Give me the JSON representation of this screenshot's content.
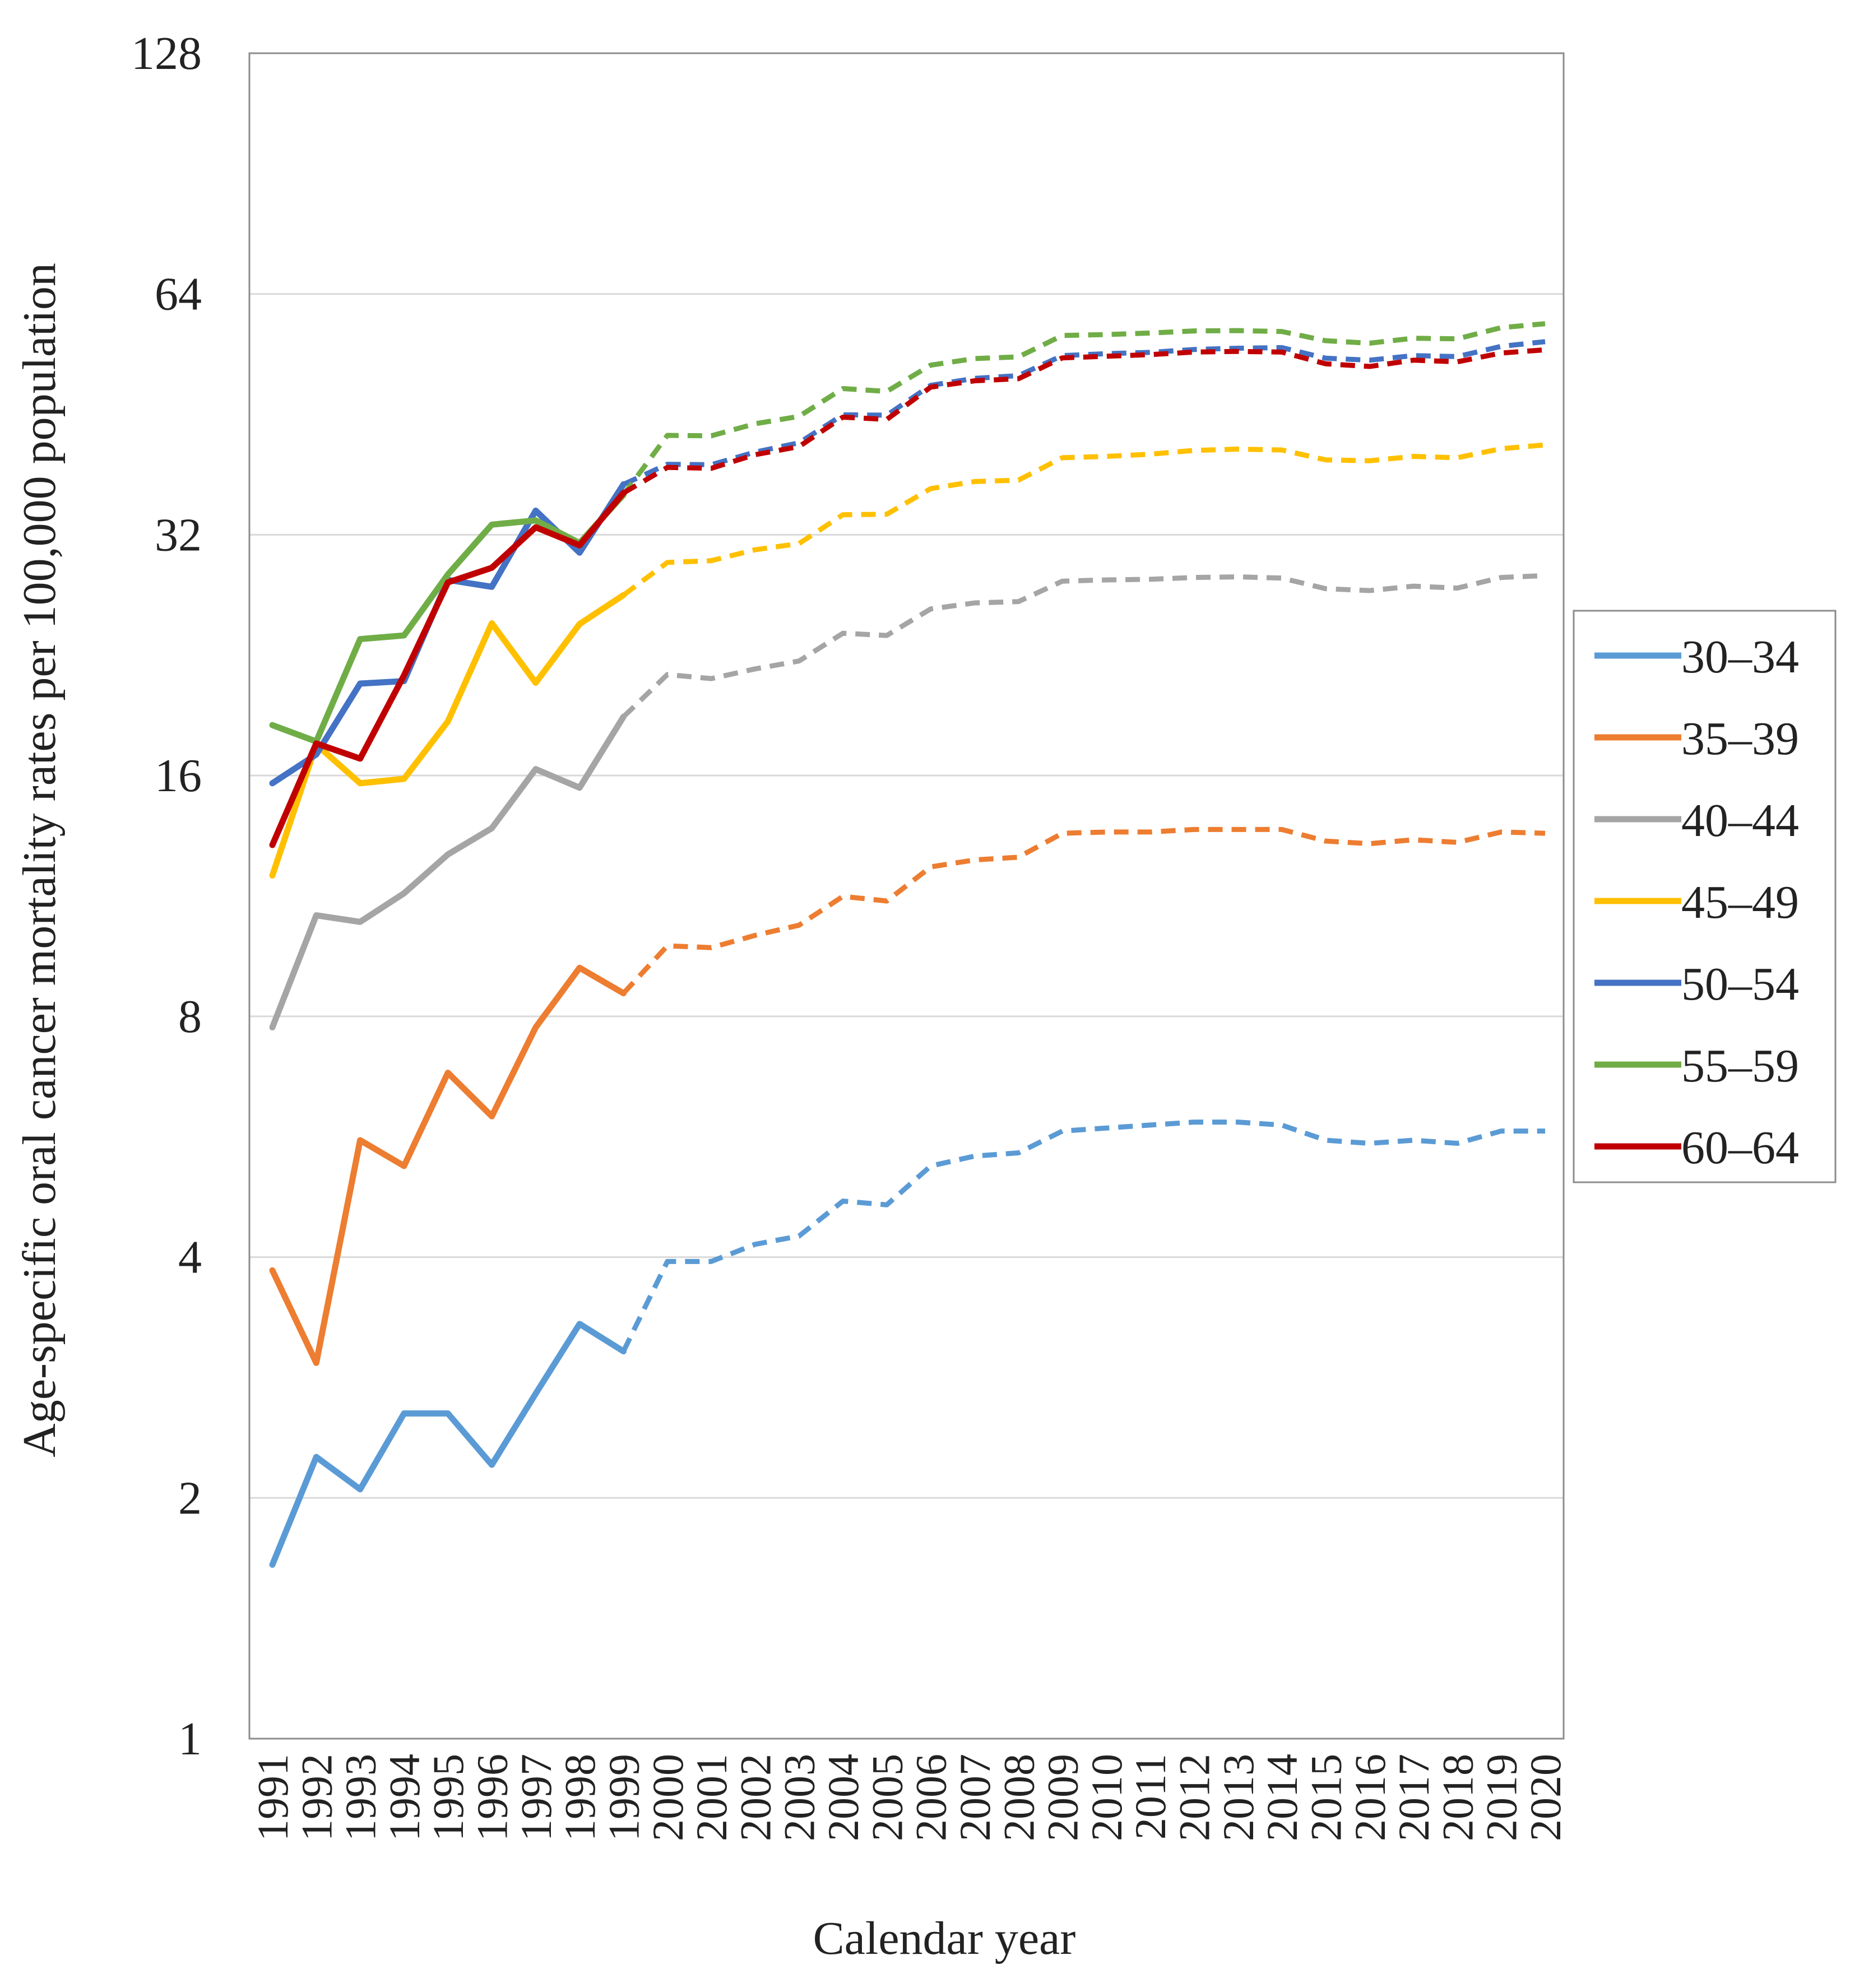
{
  "chart_data": {
    "type": "line",
    "title": "",
    "xlabel": "Calendar year",
    "ylabel": "Age-specific oral cancer mortality rates per 100,000 population",
    "yscale": "log2",
    "ylim": [
      1,
      128
    ],
    "yticks": [
      1,
      2,
      4,
      8,
      16,
      32,
      64,
      128
    ],
    "ytick_labels": [
      "1",
      "2",
      "4",
      "8",
      "16",
      "32",
      "64",
      "128"
    ],
    "x": [
      1991,
      1992,
      1993,
      1994,
      1995,
      1996,
      1997,
      1998,
      1999,
      2000,
      2001,
      2002,
      2003,
      2004,
      2005,
      2006,
      2007,
      2008,
      2009,
      2010,
      2011,
      2012,
      2013,
      2014,
      2015,
      2016,
      2017,
      2018,
      2019,
      2020
    ],
    "xtick_labels": [
      "1991",
      "1992",
      "1993",
      "1994",
      "1995",
      "1996",
      "1997",
      "1998",
      "1999",
      "2000",
      "2001",
      "2002",
      "2003",
      "2004",
      "2005",
      "2006",
      "2007",
      "2008",
      "2009",
      "2010",
      "2011",
      "2012",
      "2013",
      "2014",
      "2015",
      "2016",
      "2017",
      "2018",
      "2019",
      "2020"
    ],
    "observed_until": 1999,
    "projection_style": "dashed",
    "grid": "horizontal",
    "legend_position": "right",
    "series": [
      {
        "name": "30–34",
        "color": "#5B9BD5",
        "values": [
          1.65,
          2.25,
          2.05,
          2.55,
          2.55,
          2.2,
          2.7,
          3.3,
          3.05,
          3.95,
          3.95,
          4.15,
          4.25,
          4.7,
          4.65,
          5.2,
          5.35,
          5.4,
          5.75,
          5.8,
          5.85,
          5.9,
          5.9,
          5.85,
          5.6,
          5.55,
          5.6,
          5.55,
          5.75,
          5.75
        ]
      },
      {
        "name": "35–39",
        "color": "#ED7D31",
        "values": [
          3.85,
          2.95,
          5.6,
          5.2,
          6.8,
          6.0,
          7.75,
          9.2,
          8.55,
          9.8,
          9.75,
          10.1,
          10.4,
          11.3,
          11.15,
          12.3,
          12.55,
          12.65,
          13.55,
          13.6,
          13.6,
          13.7,
          13.7,
          13.7,
          13.25,
          13.15,
          13.3,
          13.2,
          13.6,
          13.55
        ]
      },
      {
        "name": "40–44",
        "color": "#A5A5A5",
        "values": [
          7.75,
          10.7,
          10.5,
          11.4,
          12.75,
          13.75,
          16.3,
          15.45,
          18.95,
          21.4,
          21.15,
          21.75,
          22.25,
          24.1,
          23.95,
          25.85,
          26.3,
          26.4,
          28.0,
          28.1,
          28.15,
          28.3,
          28.35,
          28.25,
          27.4,
          27.25,
          27.6,
          27.45,
          28.3,
          28.45
        ]
      },
      {
        "name": "45–49",
        "color": "#FFC000",
        "values": [
          12.0,
          17.5,
          15.65,
          15.85,
          18.7,
          24.8,
          20.9,
          24.75,
          26.9,
          29.55,
          29.7,
          30.65,
          31.2,
          33.9,
          33.95,
          36.55,
          37.3,
          37.45,
          39.95,
          40.1,
          40.35,
          40.8,
          40.95,
          40.85,
          39.7,
          39.6,
          40.1,
          39.95,
          41.0,
          41.45
        ]
      },
      {
        "name": "50–54",
        "color": "#4472C4",
        "values": [
          15.65,
          17.0,
          20.85,
          21.0,
          28.1,
          27.55,
          34.3,
          30.4,
          37.0,
          39.2,
          39.15,
          40.6,
          41.7,
          45.2,
          45.15,
          49.2,
          50.2,
          50.6,
          53.6,
          53.9,
          54.1,
          54.55,
          54.75,
          54.85,
          53.2,
          52.9,
          53.6,
          53.45,
          55.05,
          55.8
        ]
      },
      {
        "name": "55–59",
        "color": "#70AD47",
        "values": [
          18.5,
          17.65,
          23.7,
          23.95,
          28.55,
          32.95,
          33.35,
          31.25,
          35.9,
          42.6,
          42.55,
          44.05,
          45.0,
          48.75,
          48.35,
          52.15,
          53.15,
          53.4,
          56.8,
          56.95,
          57.2,
          57.55,
          57.6,
          57.45,
          55.95,
          55.55,
          56.35,
          56.25,
          58.1,
          58.75
        ]
      },
      {
        "name": "60–64",
        "color": "#C00000",
        "values": [
          13.1,
          17.55,
          16.8,
          21.35,
          27.9,
          29.1,
          32.7,
          31.05,
          36.1,
          38.85,
          38.75,
          40.3,
          41.25,
          44.9,
          44.6,
          48.95,
          49.85,
          50.15,
          53.25,
          53.5,
          53.75,
          54.15,
          54.25,
          54.15,
          52.35,
          51.95,
          52.9,
          52.65,
          54.0,
          54.5
        ]
      }
    ]
  }
}
